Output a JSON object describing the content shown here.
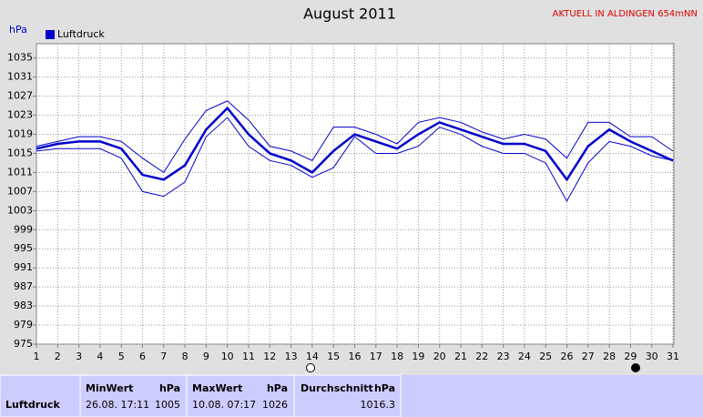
{
  "chart_data": {
    "type": "line",
    "title": "August 2011",
    "station": "AKTUELL IN ALDINGEN 654mNN",
    "y_label": "hPa",
    "x": [
      1,
      2,
      3,
      4,
      5,
      6,
      7,
      8,
      9,
      10,
      11,
      12,
      13,
      14,
      15,
      16,
      17,
      18,
      19,
      20,
      21,
      22,
      23,
      24,
      25,
      26,
      27,
      28,
      29,
      30,
      31
    ],
    "xlim": [
      1,
      31
    ],
    "series": [
      {
        "name": "Luftdruck",
        "color": "#0000cc",
        "values": [
          1016,
          1017,
          1017.5,
          1017.5,
          1016,
          1010.5,
          1009.5,
          1012.5,
          1020,
          1024.5,
          1019,
          1015,
          1013.5,
          1011,
          1015.5,
          1019,
          1017.5,
          1016,
          1019,
          1021.5,
          1020,
          1018.5,
          1017,
          1017,
          1015.5,
          1009.5,
          1016.5,
          1020,
          1017.5,
          1015.5,
          1013.5
        ],
        "max_values": [
          1016.5,
          1017.5,
          1018.5,
          1018.5,
          1017.5,
          1014,
          1011,
          1018,
          1024,
          1026,
          1022,
          1016.5,
          1015.5,
          1013.5,
          1020.5,
          1020.5,
          1019,
          1017,
          1021.5,
          1022.5,
          1021.5,
          1019.5,
          1018,
          1019,
          1018,
          1014,
          1021.5,
          1021.5,
          1018.5,
          1018.5,
          1015.5
        ],
        "min_values": [
          1015.5,
          1016,
          1016,
          1016,
          1014,
          1007,
          1006,
          1009,
          1018.5,
          1022.5,
          1016.5,
          1013.5,
          1012.5,
          1010,
          1012,
          1018.5,
          1015,
          1015,
          1016.5,
          1020.5,
          1019,
          1016.5,
          1015,
          1015,
          1013,
          1005,
          1013,
          1017.5,
          1016.5,
          1014.5,
          1013.5
        ]
      }
    ],
    "ylim": [
      975,
      1038
    ],
    "yticks": [
      975,
      979,
      983,
      987,
      991,
      995,
      999,
      1003,
      1007,
      1011,
      1015,
      1019,
      1023,
      1027,
      1031,
      1035
    ],
    "grid": true
  },
  "table": {
    "header": [
      "MinWert",
      "hPa",
      "MaxWert",
      "hPa",
      "Durchschnitt",
      "hPa"
    ],
    "rows": [
      [
        "Luftdruck",
        "26.08. 17:11",
        "1005",
        "10.08. 07:17",
        "1026",
        "1016.3"
      ]
    ]
  }
}
